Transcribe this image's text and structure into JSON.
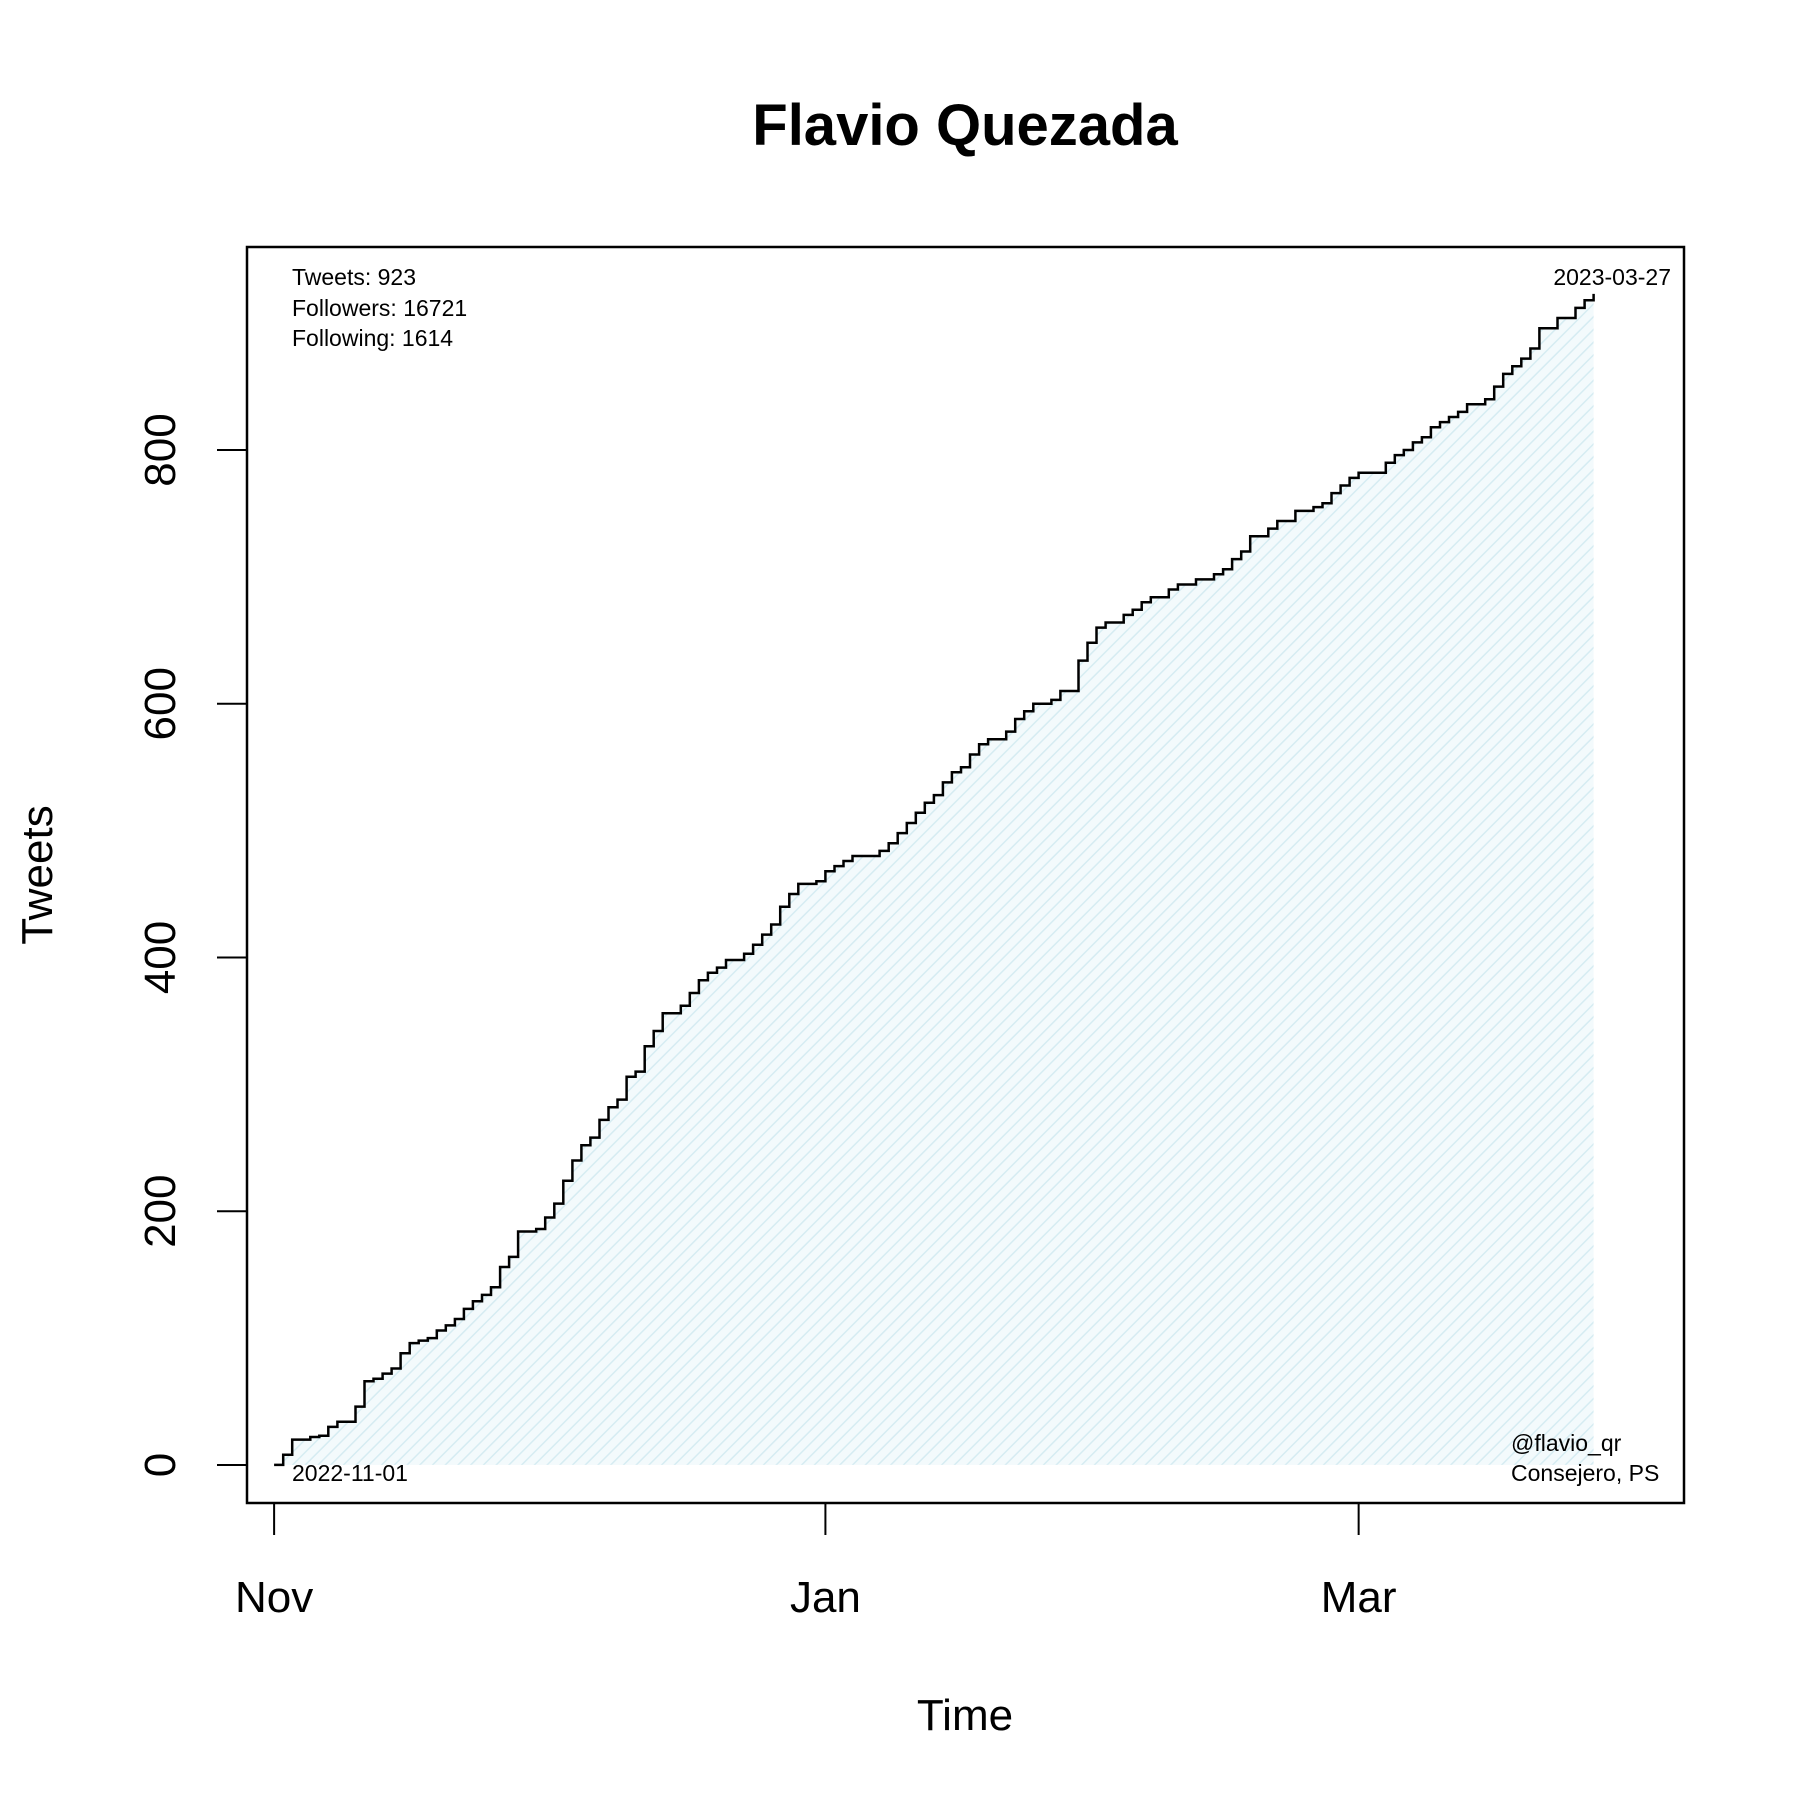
{
  "chart_data": {
    "type": "line",
    "step": true,
    "title": "Flavio Quezada",
    "xlabel": "Time",
    "ylabel": "Tweets",
    "x_start": "2022-11-01",
    "x_end": "2023-03-27",
    "xlim": [
      "2022-10-29",
      "2023-04-06"
    ],
    "ylim": [
      -30,
      960
    ],
    "y_ticks": [
      0,
      200,
      400,
      600,
      800
    ],
    "x_ticks": [
      {
        "date": "2022-11-01",
        "label": "Nov"
      },
      {
        "date": "2023-01-01",
        "label": "Jan"
      },
      {
        "date": "2023-03-01",
        "label": "Mar"
      }
    ],
    "fill_color": "#e8f4f8",
    "line_color": "#000000",
    "annotations": {
      "top_left": [
        "Tweets: 923",
        "Followers: 16721",
        "Following: 1614"
      ],
      "top_right": "2023-03-27",
      "bottom_left": "2022-11-01",
      "bottom_right": [
        "@flavio_qr",
        "Consejero, PS"
      ]
    },
    "series": [
      {
        "points": [
          [
            "2022-11-01",
            0
          ],
          [
            "2022-11-02",
            8
          ],
          [
            "2022-11-03",
            20
          ],
          [
            "2022-11-05",
            22
          ],
          [
            "2022-11-06",
            23
          ],
          [
            "2022-11-07",
            30
          ],
          [
            "2022-11-08",
            34
          ],
          [
            "2022-11-10",
            46
          ],
          [
            "2022-11-11",
            66
          ],
          [
            "2022-11-12",
            68
          ],
          [
            "2022-11-13",
            72
          ],
          [
            "2022-11-14",
            76
          ],
          [
            "2022-11-15",
            88
          ],
          [
            "2022-11-16",
            96
          ],
          [
            "2022-11-17",
            98
          ],
          [
            "2022-11-18",
            100
          ],
          [
            "2022-11-19",
            106
          ],
          [
            "2022-11-20",
            110
          ],
          [
            "2022-11-21",
            115
          ],
          [
            "2022-11-22",
            123
          ],
          [
            "2022-11-23",
            129
          ],
          [
            "2022-11-24",
            134
          ],
          [
            "2022-11-25",
            140
          ],
          [
            "2022-11-26",
            156
          ],
          [
            "2022-11-27",
            164
          ],
          [
            "2022-11-28",
            184
          ],
          [
            "2022-11-30",
            186
          ],
          [
            "2022-12-01",
            195
          ],
          [
            "2022-12-02",
            206
          ],
          [
            "2022-12-03",
            224
          ],
          [
            "2022-12-04",
            240
          ],
          [
            "2022-12-05",
            252
          ],
          [
            "2022-12-06",
            258
          ],
          [
            "2022-12-07",
            272
          ],
          [
            "2022-12-08",
            282
          ],
          [
            "2022-12-09",
            288
          ],
          [
            "2022-12-10",
            306
          ],
          [
            "2022-12-11",
            310
          ],
          [
            "2022-12-12",
            330
          ],
          [
            "2022-12-13",
            342
          ],
          [
            "2022-12-14",
            356
          ],
          [
            "2022-12-16",
            362
          ],
          [
            "2022-12-17",
            372
          ],
          [
            "2022-12-18",
            382
          ],
          [
            "2022-12-19",
            388
          ],
          [
            "2022-12-20",
            392
          ],
          [
            "2022-12-21",
            398
          ],
          [
            "2022-12-23",
            403
          ],
          [
            "2022-12-24",
            410
          ],
          [
            "2022-12-25",
            418
          ],
          [
            "2022-12-26",
            426
          ],
          [
            "2022-12-27",
            440
          ],
          [
            "2022-12-28",
            450
          ],
          [
            "2022-12-29",
            458
          ],
          [
            "2022-12-31",
            460
          ],
          [
            "2023-01-01",
            468
          ],
          [
            "2023-01-02",
            472
          ],
          [
            "2023-01-03",
            476
          ],
          [
            "2023-01-04",
            480
          ],
          [
            "2023-01-07",
            484
          ],
          [
            "2023-01-08",
            490
          ],
          [
            "2023-01-09",
            498
          ],
          [
            "2023-01-10",
            506
          ],
          [
            "2023-01-11",
            514
          ],
          [
            "2023-01-12",
            522
          ],
          [
            "2023-01-13",
            528
          ],
          [
            "2023-01-14",
            538
          ],
          [
            "2023-01-15",
            546
          ],
          [
            "2023-01-16",
            550
          ],
          [
            "2023-01-17",
            560
          ],
          [
            "2023-01-18",
            568
          ],
          [
            "2023-01-19",
            572
          ],
          [
            "2023-01-21",
            578
          ],
          [
            "2023-01-22",
            588
          ],
          [
            "2023-01-23",
            594
          ],
          [
            "2023-01-24",
            600
          ],
          [
            "2023-01-26",
            603
          ],
          [
            "2023-01-27",
            610
          ],
          [
            "2023-01-29",
            634
          ],
          [
            "2023-01-30",
            648
          ],
          [
            "2023-01-31",
            660
          ],
          [
            "2023-02-01",
            664
          ],
          [
            "2023-02-03",
            670
          ],
          [
            "2023-02-04",
            674
          ],
          [
            "2023-02-05",
            680
          ],
          [
            "2023-02-06",
            684
          ],
          [
            "2023-02-08",
            690
          ],
          [
            "2023-02-09",
            694
          ],
          [
            "2023-02-11",
            698
          ],
          [
            "2023-02-13",
            702
          ],
          [
            "2023-02-14",
            706
          ],
          [
            "2023-02-15",
            714
          ],
          [
            "2023-02-16",
            720
          ],
          [
            "2023-02-17",
            732
          ],
          [
            "2023-02-19",
            738
          ],
          [
            "2023-02-20",
            744
          ],
          [
            "2023-02-22",
            752
          ],
          [
            "2023-02-24",
            755
          ],
          [
            "2023-02-25",
            758
          ],
          [
            "2023-02-26",
            766
          ],
          [
            "2023-02-27",
            772
          ],
          [
            "2023-02-28",
            778
          ],
          [
            "2023-03-01",
            782
          ],
          [
            "2023-03-04",
            790
          ],
          [
            "2023-03-05",
            796
          ],
          [
            "2023-03-06",
            800
          ],
          [
            "2023-03-07",
            806
          ],
          [
            "2023-03-08",
            810
          ],
          [
            "2023-03-09",
            818
          ],
          [
            "2023-03-10",
            822
          ],
          [
            "2023-03-11",
            826
          ],
          [
            "2023-03-12",
            830
          ],
          [
            "2023-03-13",
            836
          ],
          [
            "2023-03-15",
            840
          ],
          [
            "2023-03-16",
            850
          ],
          [
            "2023-03-17",
            860
          ],
          [
            "2023-03-18",
            866
          ],
          [
            "2023-03-19",
            872
          ],
          [
            "2023-03-20",
            880
          ],
          [
            "2023-03-21",
            896
          ],
          [
            "2023-03-23",
            904
          ],
          [
            "2023-03-25",
            912
          ],
          [
            "2023-03-26",
            918
          ],
          [
            "2023-03-27",
            923
          ]
        ]
      }
    ]
  }
}
